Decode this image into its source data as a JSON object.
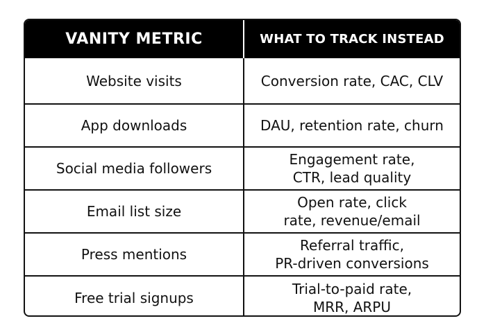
{
  "table": {
    "headers": {
      "metric": "VANITY METRIC",
      "instead": "WHAT TO TRACK INSTEAD"
    },
    "rows": [
      {
        "metric": "Website visits",
        "instead_line1": "Conversion rate, CAC, CLV",
        "instead_line2": ""
      },
      {
        "metric": "App downloads",
        "instead_line1": "DAU, retention rate, churn",
        "instead_line2": ""
      },
      {
        "metric": "Social media followers",
        "instead_line1": "Engagement rate,",
        "instead_line2": "CTR, lead quality"
      },
      {
        "metric": "Email list size",
        "instead_line1": "Open rate, click",
        "instead_line2": "rate, revenue/email"
      },
      {
        "metric": "Press mentions",
        "instead_line1": "Referral traffic,",
        "instead_line2": "PR-driven conversions"
      },
      {
        "metric": "Free trial signups",
        "instead_line1": "Trial-to-paid rate,",
        "instead_line2": "MRR, ARPU"
      }
    ]
  }
}
